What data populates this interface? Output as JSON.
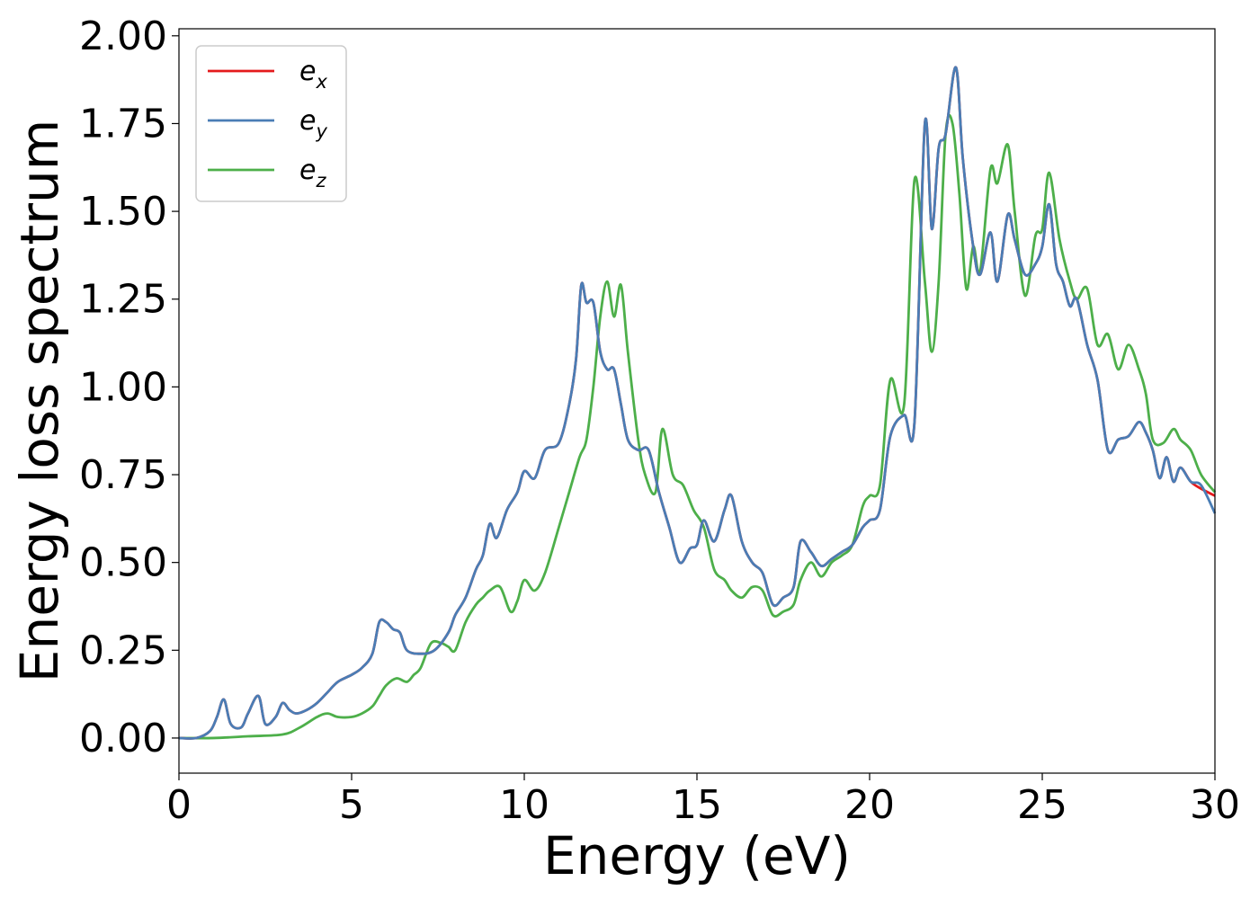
{
  "chart_data": {
    "type": "line",
    "title": "",
    "xlabel": "Energy (eV)",
    "ylabel": "Energy loss spectrum",
    "xlim": [
      0,
      30
    ],
    "ylim": [
      -0.1,
      2.02
    ],
    "xticks": [
      0,
      5,
      10,
      15,
      20,
      25,
      30
    ],
    "xtick_labels": [
      "0",
      "5",
      "10",
      "15",
      "20",
      "25",
      "30"
    ],
    "yticks": [
      0,
      0.25,
      0.5,
      0.75,
      1.0,
      1.25,
      1.5,
      1.75,
      2.0
    ],
    "ytick_labels": [
      "0.00",
      "0.25",
      "0.50",
      "0.75",
      "1.00",
      "1.25",
      "1.50",
      "1.75",
      "2.00"
    ],
    "grid": false,
    "legend_position": "top-left",
    "series": [
      {
        "name": "e",
        "sub": "x",
        "color": "#e41a1c",
        "x": [
          0,
          0.5,
          0.9,
          1.1,
          1.3,
          1.5,
          1.8,
          2.0,
          2.3,
          2.5,
          2.8,
          3.0,
          3.2,
          3.4,
          3.7,
          4.0,
          4.3,
          4.6,
          5.0,
          5.3,
          5.6,
          5.8,
          6.0,
          6.2,
          6.4,
          6.6,
          7.0,
          7.4,
          7.8,
          8.0,
          8.3,
          8.6,
          8.8,
          9.0,
          9.2,
          9.5,
          9.8,
          10.0,
          10.3,
          10.6,
          11.0,
          11.3,
          11.5,
          11.65,
          11.8,
          12.0,
          12.2,
          12.4,
          12.6,
          12.8,
          13.0,
          13.3,
          13.6,
          13.9,
          14.2,
          14.5,
          14.8,
          15.0,
          15.2,
          15.5,
          15.8,
          16.0,
          16.3,
          16.6,
          16.9,
          17.2,
          17.5,
          17.8,
          18.0,
          18.3,
          18.6,
          18.9,
          19.2,
          19.5,
          19.8,
          20.0,
          20.3,
          20.6,
          21.0,
          21.3,
          21.6,
          21.8,
          22.0,
          22.2,
          22.5,
          22.7,
          23.0,
          23.2,
          23.5,
          23.7,
          24.0,
          24.2,
          24.5,
          24.8,
          25.0,
          25.2,
          25.4,
          25.6,
          25.8,
          26.0,
          26.3,
          26.6,
          26.9,
          27.2,
          27.5,
          27.8,
          28.0,
          28.2,
          28.4,
          28.6,
          28.8,
          29.0,
          29.3,
          29.6,
          30.0
        ],
        "y": [
          0.0,
          0.0,
          0.02,
          0.06,
          0.11,
          0.04,
          0.03,
          0.07,
          0.12,
          0.04,
          0.06,
          0.1,
          0.08,
          0.07,
          0.08,
          0.1,
          0.13,
          0.16,
          0.18,
          0.2,
          0.24,
          0.33,
          0.33,
          0.31,
          0.3,
          0.25,
          0.24,
          0.25,
          0.3,
          0.35,
          0.4,
          0.48,
          0.52,
          0.61,
          0.57,
          0.65,
          0.7,
          0.76,
          0.74,
          0.82,
          0.84,
          0.95,
          1.08,
          1.29,
          1.24,
          1.24,
          1.1,
          1.05,
          1.05,
          0.95,
          0.85,
          0.82,
          0.82,
          0.7,
          0.6,
          0.5,
          0.54,
          0.55,
          0.62,
          0.56,
          0.65,
          0.69,
          0.56,
          0.5,
          0.47,
          0.38,
          0.4,
          0.43,
          0.56,
          0.53,
          0.49,
          0.51,
          0.53,
          0.55,
          0.6,
          0.62,
          0.65,
          0.86,
          0.92,
          0.9,
          1.75,
          1.45,
          1.68,
          1.72,
          1.91,
          1.65,
          1.4,
          1.32,
          1.44,
          1.3,
          1.49,
          1.42,
          1.32,
          1.35,
          1.4,
          1.52,
          1.35,
          1.3,
          1.23,
          1.25,
          1.12,
          1.02,
          0.82,
          0.85,
          0.86,
          0.9,
          0.87,
          0.82,
          0.74,
          0.8,
          0.73,
          0.77,
          0.73,
          0.71,
          0.69
        ]
      },
      {
        "name": "e",
        "sub": "y",
        "color": "#4a7db5",
        "x": [
          0,
          0.5,
          0.9,
          1.1,
          1.3,
          1.5,
          1.8,
          2.0,
          2.3,
          2.5,
          2.8,
          3.0,
          3.2,
          3.4,
          3.7,
          4.0,
          4.3,
          4.6,
          5.0,
          5.3,
          5.6,
          5.8,
          6.0,
          6.2,
          6.4,
          6.6,
          7.0,
          7.4,
          7.8,
          8.0,
          8.3,
          8.6,
          8.8,
          9.0,
          9.2,
          9.5,
          9.8,
          10.0,
          10.3,
          10.6,
          11.0,
          11.3,
          11.5,
          11.65,
          11.8,
          12.0,
          12.2,
          12.4,
          12.6,
          12.8,
          13.0,
          13.3,
          13.6,
          13.9,
          14.2,
          14.5,
          14.8,
          15.0,
          15.2,
          15.5,
          15.8,
          16.0,
          16.3,
          16.6,
          16.9,
          17.2,
          17.5,
          17.8,
          18.0,
          18.3,
          18.6,
          18.9,
          19.2,
          19.5,
          19.8,
          20.0,
          20.3,
          20.6,
          21.0,
          21.3,
          21.6,
          21.8,
          22.0,
          22.2,
          22.5,
          22.7,
          23.0,
          23.2,
          23.5,
          23.7,
          24.0,
          24.2,
          24.5,
          24.8,
          25.0,
          25.2,
          25.4,
          25.6,
          25.8,
          26.0,
          26.3,
          26.6,
          26.9,
          27.2,
          27.5,
          27.8,
          28.0,
          28.2,
          28.4,
          28.6,
          28.8,
          29.0,
          29.3,
          29.6,
          30.0
        ],
        "y": [
          0.0,
          0.0,
          0.02,
          0.06,
          0.11,
          0.04,
          0.03,
          0.07,
          0.12,
          0.04,
          0.06,
          0.1,
          0.08,
          0.07,
          0.08,
          0.1,
          0.13,
          0.16,
          0.18,
          0.2,
          0.24,
          0.33,
          0.33,
          0.31,
          0.3,
          0.25,
          0.24,
          0.25,
          0.3,
          0.35,
          0.4,
          0.48,
          0.52,
          0.61,
          0.57,
          0.65,
          0.7,
          0.76,
          0.74,
          0.82,
          0.84,
          0.95,
          1.08,
          1.29,
          1.24,
          1.24,
          1.1,
          1.05,
          1.05,
          0.95,
          0.85,
          0.82,
          0.82,
          0.7,
          0.6,
          0.5,
          0.54,
          0.55,
          0.62,
          0.56,
          0.65,
          0.69,
          0.56,
          0.5,
          0.47,
          0.38,
          0.4,
          0.43,
          0.56,
          0.53,
          0.49,
          0.51,
          0.53,
          0.55,
          0.6,
          0.62,
          0.65,
          0.86,
          0.92,
          0.9,
          1.75,
          1.45,
          1.68,
          1.72,
          1.91,
          1.65,
          1.4,
          1.32,
          1.44,
          1.3,
          1.49,
          1.42,
          1.32,
          1.35,
          1.4,
          1.52,
          1.35,
          1.3,
          1.23,
          1.25,
          1.12,
          1.02,
          0.82,
          0.85,
          0.86,
          0.9,
          0.87,
          0.82,
          0.74,
          0.8,
          0.73,
          0.77,
          0.73,
          0.72,
          0.64
        ]
      },
      {
        "name": "e",
        "sub": "z",
        "color": "#4daf4a",
        "x": [
          0,
          1,
          2,
          3,
          3.5,
          4.0,
          4.3,
          4.6,
          5.0,
          5.3,
          5.6,
          5.8,
          6.0,
          6.3,
          6.6,
          6.8,
          7.0,
          7.3,
          7.6,
          7.8,
          8.0,
          8.3,
          8.6,
          8.8,
          9.0,
          9.3,
          9.6,
          9.8,
          10.0,
          10.3,
          10.6,
          11.0,
          11.3,
          11.6,
          11.8,
          12.0,
          12.2,
          12.4,
          12.6,
          12.8,
          13.0,
          13.3,
          13.5,
          13.8,
          14.0,
          14.3,
          14.6,
          14.9,
          15.2,
          15.5,
          15.8,
          16.0,
          16.3,
          16.6,
          16.9,
          17.2,
          17.5,
          17.8,
          18.0,
          18.3,
          18.6,
          18.9,
          19.2,
          19.5,
          19.8,
          20.0,
          20.3,
          20.6,
          21.0,
          21.3,
          21.6,
          21.8,
          22.0,
          22.2,
          22.4,
          22.6,
          22.8,
          23.0,
          23.2,
          23.5,
          23.7,
          24.0,
          24.2,
          24.5,
          24.8,
          25.0,
          25.2,
          25.5,
          25.8,
          26.0,
          26.3,
          26.6,
          26.9,
          27.2,
          27.5,
          27.8,
          28.0,
          28.2,
          28.5,
          28.8,
          29.0,
          29.3,
          29.6,
          30.0
        ],
        "y": [
          0.0,
          0.0,
          0.005,
          0.01,
          0.03,
          0.06,
          0.07,
          0.06,
          0.06,
          0.07,
          0.09,
          0.12,
          0.15,
          0.17,
          0.16,
          0.18,
          0.2,
          0.27,
          0.27,
          0.26,
          0.25,
          0.33,
          0.38,
          0.4,
          0.42,
          0.43,
          0.36,
          0.39,
          0.45,
          0.42,
          0.47,
          0.6,
          0.7,
          0.8,
          0.85,
          1.0,
          1.2,
          1.3,
          1.2,
          1.29,
          1.1,
          0.85,
          0.75,
          0.7,
          0.88,
          0.75,
          0.72,
          0.65,
          0.6,
          0.48,
          0.45,
          0.42,
          0.4,
          0.43,
          0.42,
          0.35,
          0.36,
          0.38,
          0.45,
          0.5,
          0.46,
          0.5,
          0.52,
          0.55,
          0.66,
          0.69,
          0.72,
          1.02,
          0.95,
          1.59,
          1.3,
          1.1,
          1.3,
          1.72,
          1.75,
          1.55,
          1.28,
          1.4,
          1.33,
          1.62,
          1.58,
          1.69,
          1.5,
          1.26,
          1.43,
          1.45,
          1.61,
          1.42,
          1.3,
          1.25,
          1.28,
          1.12,
          1.15,
          1.05,
          1.12,
          1.05,
          0.98,
          0.85,
          0.84,
          0.88,
          0.85,
          0.82,
          0.75,
          0.7
        ]
      }
    ]
  }
}
